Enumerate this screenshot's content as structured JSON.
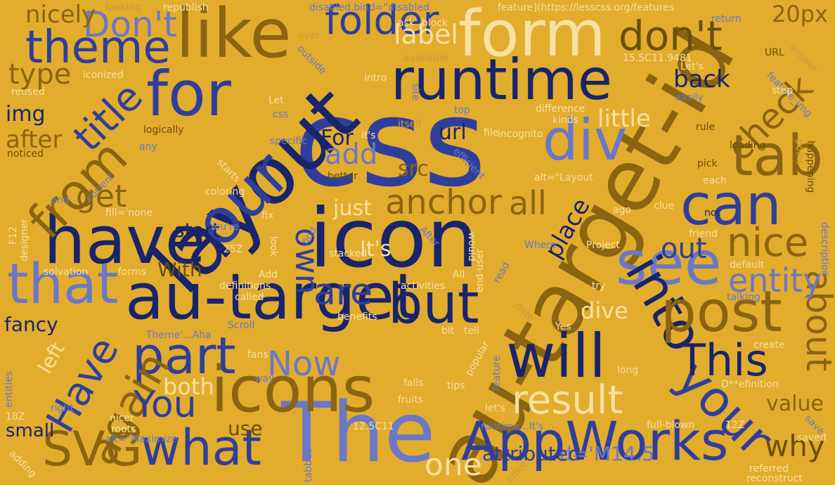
{
  "colors": {
    "background": "#e2ac2d",
    "navy": "#18246b",
    "blue": "#2e3f9b",
    "periwinkle": "#6a78c8",
    "olive": "#8a6410",
    "brown": "#6b4e06",
    "cream": "#f7e1a1",
    "gold": "#c89a3c"
  },
  "words": {
    "css": "css",
    "icon": "icon",
    "au_target_id": "au-target-id",
    "au_target": "au-target",
    "layout": "layout",
    "form": "form",
    "runtime": "runtime",
    "like": "like",
    "for": "for",
    "have": "have",
    "our": "our",
    "the": "The",
    "appworks": "AppWorks",
    "icons": "icons",
    "see": "see",
    "will": "will",
    "into": "into",
    "your": "your",
    "but": "but",
    "part": "part",
    "post": "post",
    "can": "can",
    "tab": "tab",
    "div": "div",
    "what": "what",
    "svg": "SVG",
    "that": "that",
    "theme": "theme",
    "from": "from",
    "again": "again",
    "result": "result",
    "about": "about",
    "this": "This",
    "dont_lower": "don't",
    "dont_upper": "Don't",
    "folder": "folder",
    "you": "You",
    "have_cap": "Have",
    "title": "title",
    "check": "check",
    "nice": "nice",
    "out": "out",
    "entity": "entity",
    "are": "are",
    "anchor": "anchor",
    "all": "all",
    "now": "Now",
    "own": "own",
    "one": "one",
    "why": "why",
    "label": "label",
    "type": "type",
    "get": "get",
    "add": "add",
    "px20": "20px",
    "nicely": "nicely",
    "back": "back",
    "img": "img",
    "little": "little",
    "url": "url",
    "for_cap": "For",
    "after": "after",
    "src": "src",
    "just": "just",
    "start": "start",
    "with": "With",
    "its": "It's",
    "place": "place",
    "dive": "dive",
    "fancy": "fancy",
    "left": "left",
    "both": "both",
    "value": "value",
    "small": "small",
    "use": "use",
    "attributed": "attributed",
    "d_m14": "d='M14.5",
    "looking": "looking",
    "republish": "republish",
    "disabled_bind": "disabled.bind=\"disabled",
    "feature_url": "feature](https://lesscss.org/features",
    "return": "return",
    "answer": "answer",
    "ask": "ask",
    "block": "block",
    "ever": "ever",
    "outside": "outside",
    "available": "available",
    "num_9481": "15.5C11.9481",
    "lets_cap": "Let's",
    "url_cap": "URL",
    "iconized": "iconized",
    "intro": "intro",
    "site": "site",
    "reused": "reused",
    "feature_img": "feature_img",
    "step": "step",
    "let": "Let",
    "css_small": "css",
    "easily": "easily",
    "noticed": "noticed",
    "difference": "difference",
    "top": "top",
    "kinds": "kinds",
    "logically": "logically",
    "itself": "itself",
    "file": "file",
    "incognito": "incognito",
    "rule": "rule",
    "its_small": "it's",
    "any": "any",
    "specific": "specific",
    "loading": "loading",
    "point": "point",
    "happening": "happening",
    "current": "current",
    "starts": "starts",
    "efficient": "efficient",
    "better": "better",
    "pick": "pick",
    "alt_layout": "alt=\"Layout",
    "end": "end",
    "coloring": "coloring",
    "each": "each",
    "fill_none": "fill='none",
    "find": "find",
    "clue": "clue",
    "fix": "fix",
    "ago": "ago",
    "not": "not",
    "youre": "You're",
    "f12": "F12",
    "designer": "designer",
    "z25": "25Z",
    "look": "look",
    "would": "would",
    "where": "Where",
    "after_cap": "After",
    "friend": "friend",
    "project": "Project",
    "description": "description",
    "solvation": "solvation",
    "forms": "forms",
    "stacked": "stacked",
    "all_cap": "All",
    "read": "read",
    "end_user": "end-user",
    "activities": "activities",
    "default": "default",
    "add_cap": "Add",
    "definitions": "definitions",
    "try": "try",
    "called": "called",
    "talking": "talking",
    "theme_aha": "Theme'...Aha",
    "scroll": "Scroll",
    "benefits": "benefits",
    "date": "date",
    "yes": "Yes",
    "bit": "bit",
    "tell": "tell",
    "popular": "popular",
    "create": "create",
    "fans": "fans",
    "feature": "feature",
    "long": "long",
    "entities": "entities",
    "way": "way",
    "falls": "falls",
    "tips": "tips",
    "d_efinition": "D**efinition",
    "right": "right",
    "fruits": "fruits",
    "lets_small": "let's",
    "z18": "18Z",
    "nicer": "nicer",
    "roots": "roots",
    "num_12_5": "12.5C11",
    "full_blown": "full-blown",
    "z12": "12Z",
    "save": "save",
    "alt_maximize": "alt=\"Maximize",
    "runtime_its": "runtime...It's",
    "saved": "saved",
    "adding": "adding",
    "tabbed": "tabbed",
    "other": "other",
    "referred": "referred",
    "reconstruct": "reconstruct"
  }
}
